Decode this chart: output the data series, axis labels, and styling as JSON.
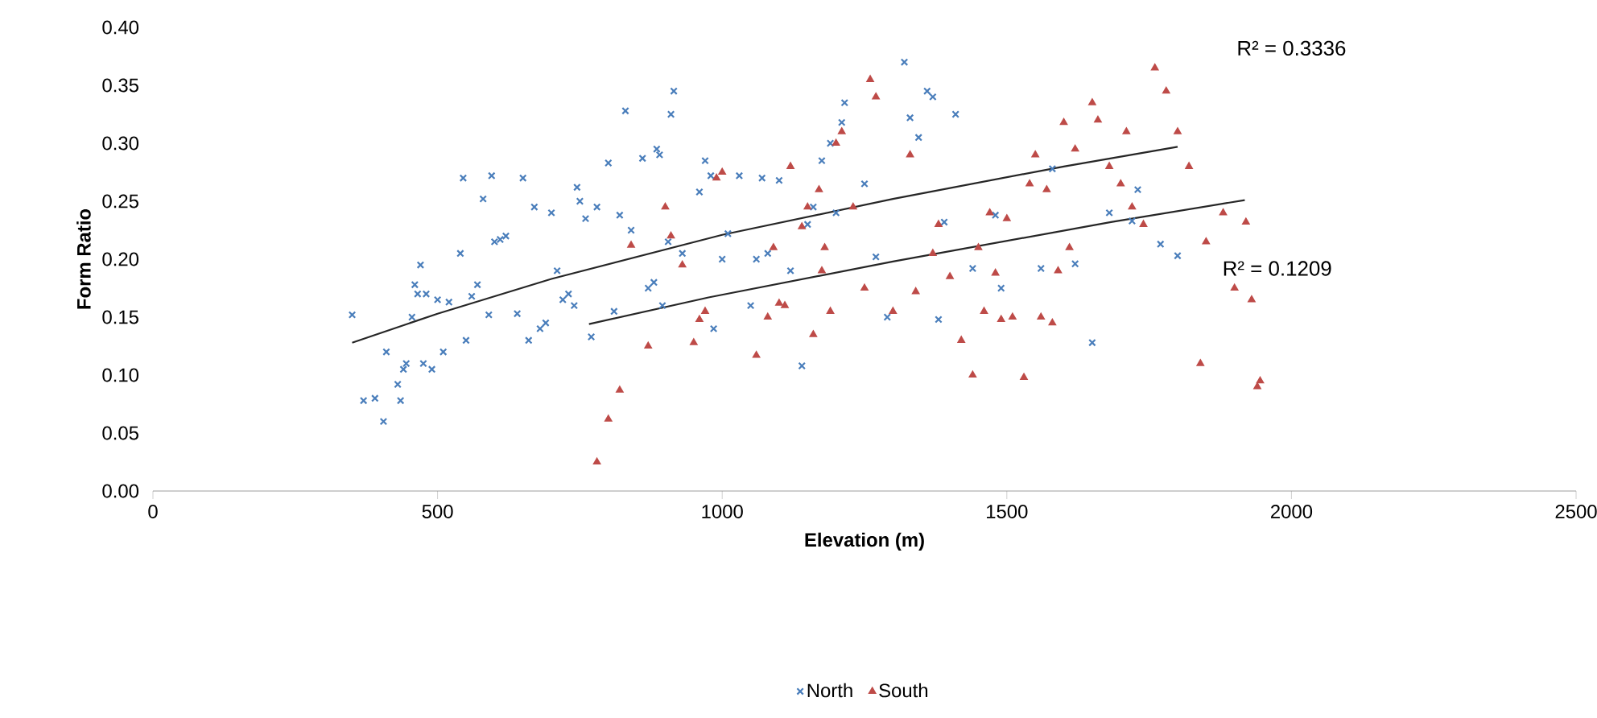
{
  "chart_data": {
    "type": "scatter",
    "xlabel": "Elevation (m)",
    "ylabel": "Form Ratio",
    "legend": "bottom",
    "xlim": [
      0,
      2500
    ],
    "xticks": [
      0,
      500,
      1000,
      1500,
      2000,
      2500
    ],
    "ylim": [
      0,
      0.4
    ],
    "yticks": [
      {
        "value": 0,
        "label": "0.00"
      },
      {
        "value": 0.05,
        "label": "0.05"
      },
      {
        "value": 0.1,
        "label": "0.10"
      },
      {
        "value": 0.15,
        "label": "0.15"
      },
      {
        "value": 0.2,
        "label": "0.20"
      },
      {
        "value": 0.25,
        "label": "0.25"
      },
      {
        "value": 0.3,
        "label": "0.30"
      },
      {
        "value": 0.35,
        "label": "0.35"
      },
      {
        "value": 0.4,
        "label": "0.40"
      }
    ],
    "annotations": [
      "R² = 0.3336",
      "R² = 0.1209"
    ],
    "series": [
      {
        "name": "North",
        "color": "#4a7ebb",
        "marker": "cross",
        "x": [
          350,
          370,
          390,
          405,
          410,
          430,
          435,
          440,
          445,
          455,
          460,
          465,
          470,
          475,
          480,
          490,
          500,
          510,
          520,
          540,
          545,
          550,
          560,
          570,
          580,
          590,
          595,
          600,
          610,
          620,
          640,
          650,
          660,
          670,
          680,
          690,
          700,
          710,
          720,
          730,
          740,
          745,
          750,
          760,
          770,
          780,
          800,
          810,
          820,
          830,
          840,
          860,
          870,
          880,
          885,
          890,
          895,
          905,
          910,
          915,
          930,
          960,
          970,
          980,
          985,
          1000,
          1010,
          1030,
          1050,
          1060,
          1070,
          1080,
          1100,
          1120,
          1140,
          1150,
          1160,
          1175,
          1190,
          1200,
          1210,
          1215,
          1250,
          1270,
          1290,
          1320,
          1330,
          1345,
          1360,
          1370,
          1380,
          1390,
          1410,
          1440,
          1480,
          1490,
          1560,
          1580,
          1620,
          1650,
          1680,
          1720,
          1730,
          1770,
          1800
        ],
        "values": [
          0.152,
          0.078,
          0.08,
          0.06,
          0.12,
          0.092,
          0.078,
          0.105,
          0.11,
          0.15,
          0.178,
          0.17,
          0.195,
          0.11,
          0.17,
          0.105,
          0.165,
          0.12,
          0.163,
          0.205,
          0.27,
          0.13,
          0.168,
          0.178,
          0.252,
          0.152,
          0.272,
          0.215,
          0.217,
          0.22,
          0.153,
          0.27,
          0.13,
          0.245,
          0.14,
          0.145,
          0.24,
          0.19,
          0.165,
          0.17,
          0.16,
          0.262,
          0.25,
          0.235,
          0.133,
          0.245,
          0.283,
          0.155,
          0.238,
          0.328,
          0.225,
          0.287,
          0.175,
          0.18,
          0.295,
          0.29,
          0.16,
          0.215,
          0.325,
          0.345,
          0.205,
          0.258,
          0.285,
          0.272,
          0.14,
          0.2,
          0.222,
          0.272,
          0.16,
          0.2,
          0.27,
          0.205,
          0.268,
          0.19,
          0.108,
          0.23,
          0.245,
          0.285,
          0.3,
          0.24,
          0.318,
          0.335,
          0.265,
          0.202,
          0.15,
          0.37,
          0.322,
          0.305,
          0.345,
          0.34,
          0.148,
          0.232,
          0.325,
          0.192,
          0.238,
          0.175,
          0.192,
          0.278,
          0.196,
          0.128,
          0.24,
          0.233,
          0.26,
          0.213,
          0.203
        ]
      },
      {
        "name": "South",
        "color": "#be4b48",
        "marker": "triangle",
        "x": [
          780,
          800,
          820,
          840,
          870,
          900,
          910,
          930,
          950,
          960,
          970,
          990,
          1000,
          1060,
          1080,
          1090,
          1100,
          1110,
          1120,
          1140,
          1150,
          1160,
          1170,
          1175,
          1180,
          1190,
          1200,
          1210,
          1230,
          1250,
          1260,
          1270,
          1300,
          1330,
          1340,
          1370,
          1380,
          1400,
          1420,
          1440,
          1450,
          1460,
          1470,
          1480,
          1490,
          1500,
          1510,
          1530,
          1540,
          1550,
          1560,
          1570,
          1580,
          1590,
          1600,
          1610,
          1620,
          1650,
          1660,
          1680,
          1700,
          1710,
          1720,
          1740,
          1760,
          1780,
          1800,
          1820,
          1840,
          1850,
          1880,
          1900,
          1920,
          1930,
          1940,
          1945
        ],
        "values": [
          0.025,
          0.062,
          0.087,
          0.212,
          0.125,
          0.245,
          0.22,
          0.195,
          0.128,
          0.148,
          0.155,
          0.27,
          0.275,
          0.117,
          0.15,
          0.21,
          0.162,
          0.16,
          0.28,
          0.228,
          0.245,
          0.135,
          0.26,
          0.19,
          0.21,
          0.155,
          0.3,
          0.31,
          0.245,
          0.175,
          0.355,
          0.34,
          0.155,
          0.29,
          0.172,
          0.205,
          0.23,
          0.185,
          0.13,
          0.1,
          0.21,
          0.155,
          0.24,
          0.188,
          0.148,
          0.235,
          0.15,
          0.098,
          0.265,
          0.29,
          0.15,
          0.26,
          0.145,
          0.19,
          0.318,
          0.21,
          0.295,
          0.335,
          0.32,
          0.28,
          0.265,
          0.31,
          0.245,
          0.23,
          0.365,
          0.345,
          0.31,
          0.28,
          0.11,
          0.215,
          0.24,
          0.175,
          0.232,
          0.165,
          0.09,
          0.095
        ]
      },
      {
        "type": "line",
        "color": "#262626",
        "marker": "none",
        "x": [
          350,
          500,
          700,
          1000,
          1300,
          1600,
          1800
        ],
        "values": [
          0.128,
          0.153,
          0.183,
          0.221,
          0.252,
          0.28,
          0.297
        ]
      },
      {
        "type": "line",
        "color": "#262626",
        "marker": "none",
        "x": [
          766,
          976,
          1300,
          1683,
          1918
        ],
        "values": [
          0.144,
          0.167,
          0.198,
          0.232,
          0.251
        ]
      }
    ]
  }
}
